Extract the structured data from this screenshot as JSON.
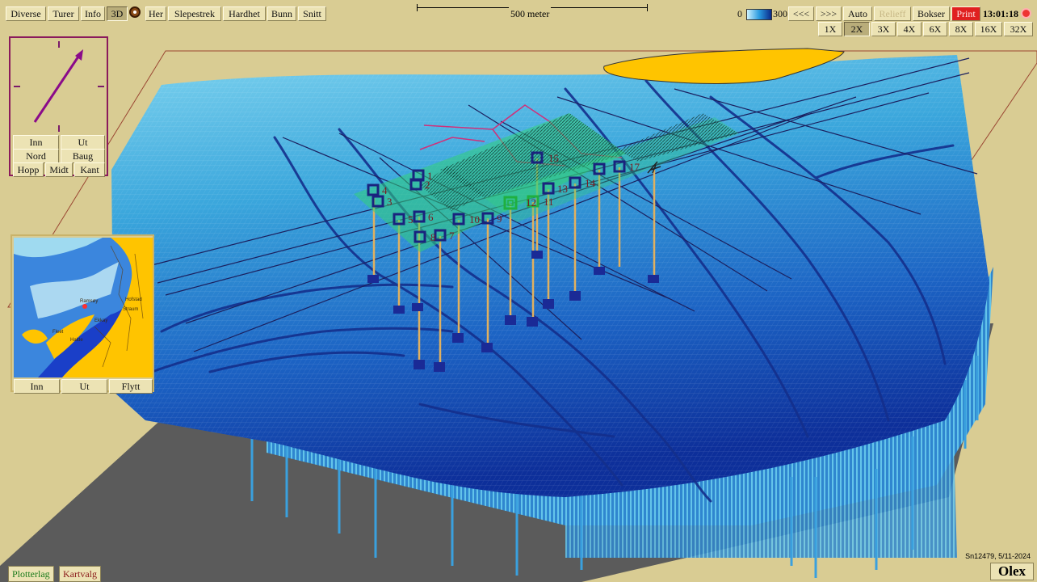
{
  "menu": {
    "items": [
      "Diverse",
      "Turer",
      "Info",
      "3D",
      "Her",
      "Slepestrek",
      "Hardhet",
      "Bunn",
      "Snitt"
    ],
    "active": "3D"
  },
  "scale": {
    "label": "500 meter"
  },
  "depth_legend": {
    "min": "0",
    "max": "300"
  },
  "playback": {
    "back": "<<<",
    "forward": ">>>",
    "auto": "Auto",
    "relief": "Relieff",
    "boxes": "Bokser",
    "print": "Print"
  },
  "clock": "13:01:18",
  "zoom": {
    "levels": [
      "1X",
      "2X",
      "3X",
      "4X",
      "6X",
      "8X",
      "16X",
      "32X"
    ],
    "active": "2X"
  },
  "compass": {
    "in": "Inn",
    "out": "Ut",
    "north": "Nord",
    "bow": "Baug",
    "jump": "Hopp",
    "center": "Midt",
    "edge": "Kant"
  },
  "minimap": {
    "in": "Inn",
    "out": "Ut",
    "move": "Flytt",
    "place_labels": [
      "Hofstad",
      "Straum",
      "Ramsøy",
      "Fleet",
      "Ekkay",
      "Halde"
    ]
  },
  "waypoints": [
    "1",
    "2",
    "3",
    "4",
    "5",
    "6",
    "7",
    "8",
    "9",
    "10",
    "11",
    "12",
    "13",
    "14",
    "15",
    "17"
  ],
  "bottom_tabs": {
    "plotter_layer": "Plotterlag",
    "map_choice": "Kartvalg"
  },
  "serial": "Sn12479, 5/11-2024",
  "logo": "Olex",
  "colors": {
    "background": "#d9cc93",
    "land": "#ffc400",
    "track": "#1b1f5e",
    "route": "#d0307a",
    "box": "#1a237e",
    "pole": "#e0b060",
    "print": "#e02020"
  }
}
